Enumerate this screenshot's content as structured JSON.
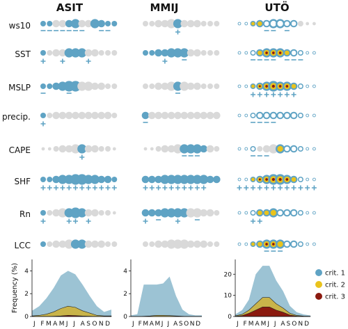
{
  "colors": {
    "crit1": "#5fa3c4",
    "crit2": "#eac31c",
    "crit3": "#8b1a0f",
    "gray": "#d9d9d9",
    "area1": "#9cc3d4",
    "area2": "#c9b44a",
    "area3": "#8b1a0f"
  },
  "months": [
    "J",
    "F",
    "M",
    "A",
    "M",
    "J",
    "J",
    "A",
    "S",
    "O",
    "N",
    "D"
  ],
  "month_string": "J FMAMJ J ASOND",
  "stations": [
    {
      "name": "ASIT",
      "key": "asit"
    },
    {
      "name": "MMIJ",
      "key": "mmij"
    },
    {
      "name": "UTÖ",
      "key": "uto"
    }
  ],
  "variables": [
    "ws10",
    "SST",
    "MSLP",
    "precip.",
    "CAPE",
    "SHF",
    "Rn",
    "LCC"
  ],
  "bubbles": {
    "asit": {
      "ws10": {
        "size": [
          2,
          2,
          3,
          3,
          3,
          4,
          3,
          3,
          4,
          3,
          2,
          2
        ],
        "c": [
          1,
          1,
          0,
          0,
          1,
          1,
          0,
          0,
          1,
          1,
          1,
          1
        ],
        "sig": "-------  -- "
      },
      "SST": {
        "size": [
          2,
          2,
          3,
          3,
          4,
          4,
          4,
          3,
          3,
          2,
          2,
          2
        ],
        "c": [
          1,
          0,
          0,
          0,
          1,
          1,
          1,
          0,
          0,
          0,
          0,
          0
        ],
        "sig": "+  +   +    "
      },
      "MSLP": {
        "size": [
          2,
          2,
          3,
          4,
          5,
          5,
          4,
          4,
          3,
          3,
          2,
          2
        ],
        "c": [
          1,
          1,
          1,
          1,
          1,
          1,
          0,
          0,
          0,
          0,
          0,
          0
        ],
        "sig": "-   -       "
      },
      "precip.": {
        "size": [
          2,
          2,
          3,
          3,
          3,
          3,
          3,
          3,
          3,
          3,
          3,
          2
        ],
        "c": [
          1,
          0,
          0,
          0,
          0,
          0,
          0,
          0,
          0,
          0,
          0,
          0
        ],
        "sig": "+           "
      },
      "CAPE": {
        "size": [
          1,
          1,
          2,
          3,
          3,
          4,
          4,
          3,
          3,
          2,
          2,
          1
        ],
        "c": [
          0,
          0,
          0,
          0,
          0,
          0,
          1,
          0,
          0,
          0,
          0,
          0
        ],
        "sig": "      +     "
      },
      "SHF": {
        "size": [
          2,
          2,
          3,
          4,
          4,
          5,
          5,
          4,
          4,
          3,
          3,
          2
        ],
        "c": [
          1,
          1,
          1,
          1,
          1,
          1,
          1,
          1,
          1,
          1,
          1,
          1
        ],
        "sig": "++++++++++++"
      },
      "Rn": {
        "size": [
          2,
          2,
          3,
          4,
          4,
          5,
          4,
          3,
          3,
          2,
          2,
          1
        ],
        "c": [
          1,
          0,
          0,
          0,
          1,
          1,
          1,
          0,
          0,
          0,
          0,
          0
        ],
        "sig": "+   ++ +    "
      },
      "LCC": {
        "size": [
          2,
          2,
          3,
          3,
          4,
          4,
          4,
          3,
          3,
          3,
          2,
          2
        ],
        "c": [
          1,
          0,
          0,
          0,
          0,
          1,
          1,
          0,
          0,
          0,
          0,
          0
        ],
        "sig": "            "
      }
    },
    "mmij": {
      "ws10": {
        "size": [
          2,
          2,
          3,
          3,
          4,
          4,
          3,
          3,
          3,
          2,
          2,
          2
        ],
        "c": [
          0,
          0,
          0,
          0,
          0,
          1,
          0,
          0,
          0,
          0,
          0,
          0
        ],
        "sig": "     +      "
      },
      "SST": {
        "size": [
          2,
          2,
          3,
          3,
          4,
          4,
          4,
          3,
          3,
          2,
          2,
          2
        ],
        "c": [
          1,
          1,
          1,
          1,
          1,
          1,
          1,
          0,
          0,
          0,
          0,
          0
        ],
        "sig": "   +  -     "
      },
      "MSLP": {
        "size": [
          2,
          2,
          3,
          3,
          4,
          4,
          4,
          3,
          3,
          2,
          2,
          2
        ],
        "c": [
          0,
          0,
          0,
          0,
          0,
          1,
          0,
          0,
          0,
          0,
          0,
          0
        ],
        "sig": "     -      "
      },
      "precip.": {
        "size": [
          3,
          3,
          3,
          3,
          3,
          3,
          3,
          3,
          3,
          3,
          3,
          3
        ],
        "c": [
          1,
          0,
          0,
          0,
          0,
          0,
          0,
          0,
          0,
          0,
          0,
          0
        ],
        "sig": "-           "
      },
      "CAPE": {
        "size": [
          1,
          1,
          2,
          3,
          3,
          4,
          4,
          4,
          4,
          3,
          3,
          2
        ],
        "c": [
          0,
          0,
          0,
          0,
          0,
          0,
          1,
          1,
          1,
          1,
          0,
          0
        ],
        "sig": "      ---   "
      },
      "SHF": {
        "size": [
          3,
          3,
          3,
          4,
          4,
          4,
          4,
          4,
          4,
          4,
          3,
          3
        ],
        "c": [
          1,
          1,
          1,
          1,
          1,
          1,
          1,
          1,
          1,
          1,
          1,
          1
        ],
        "sig": "++++++++++  "
      },
      "Rn": {
        "size": [
          3,
          3,
          3,
          4,
          4,
          4,
          4,
          4,
          4,
          3,
          3,
          2
        ],
        "c": [
          1,
          1,
          1,
          1,
          1,
          1,
          1,
          0,
          0,
          0,
          0,
          0
        ],
        "sig": "+ -  +  -   "
      },
      "LCC": {
        "size": [
          2,
          2,
          3,
          3,
          4,
          4,
          4,
          3,
          3,
          3,
          2,
          2
        ],
        "c": [
          0,
          0,
          0,
          0,
          0,
          0,
          0,
          0,
          0,
          0,
          0,
          0
        ],
        "sig": "            "
      }
    },
    "uto": {
      "ws10": {
        "size": [
          1,
          1,
          2,
          3,
          3,
          4,
          4,
          3,
          3,
          2,
          1,
          1
        ],
        "c": [
          1,
          1,
          2,
          2,
          1,
          1,
          1,
          1,
          1,
          0,
          0,
          0
        ],
        "sig": "    -- -    "
      },
      "SST": {
        "size": [
          1,
          1,
          2,
          3,
          4,
          4,
          4,
          3,
          3,
          2,
          1,
          1
        ],
        "c": [
          1,
          1,
          1,
          2,
          3,
          3,
          3,
          2,
          1,
          1,
          1,
          1
        ],
        "sig": "  ---- ---  "
      },
      "MSLP": {
        "size": [
          1,
          1,
          2,
          3,
          4,
          5,
          4,
          4,
          3,
          2,
          1,
          1
        ],
        "c": [
          1,
          1,
          2,
          3,
          3,
          3,
          3,
          3,
          2,
          1,
          1,
          1
        ],
        "sig": "  +++++++   "
      },
      "precip.": {
        "size": [
          1,
          1,
          2,
          3,
          3,
          3,
          3,
          3,
          3,
          2,
          1,
          1
        ],
        "c": [
          1,
          1,
          1,
          1,
          1,
          1,
          1,
          1,
          1,
          1,
          1,
          1
        ],
        "sig": "  ----      "
      },
      "CAPE": {
        "size": [
          1,
          1,
          2,
          2,
          3,
          4,
          4,
          3,
          3,
          2,
          1,
          1
        ],
        "c": [
          1,
          1,
          1,
          0,
          0,
          0,
          2,
          1,
          1,
          1,
          1,
          1
        ],
        "sig": "  ---      "
      },
      "SHF": {
        "size": [
          1,
          1,
          2,
          3,
          4,
          5,
          5,
          4,
          3,
          2,
          1,
          1
        ],
        "c": [
          1,
          1,
          2,
          3,
          3,
          3,
          3,
          3,
          2,
          1,
          1,
          1
        ],
        "sig": "++++++++++++"
      },
      "Rn": {
        "size": [
          1,
          1,
          2,
          3,
          3,
          4,
          3,
          3,
          3,
          2,
          1,
          1
        ],
        "c": [
          1,
          1,
          1,
          2,
          2,
          2,
          1,
          1,
          1,
          1,
          1,
          1
        ],
        "sig": "  ++        "
      },
      "LCC": {
        "size": [
          1,
          1,
          2,
          3,
          4,
          4,
          4,
          3,
          3,
          2,
          1,
          1
        ],
        "c": [
          1,
          1,
          2,
          2,
          3,
          3,
          2,
          1,
          1,
          1,
          1,
          1
        ],
        "sig": "    ---     "
      }
    }
  },
  "chart_data": [
    {
      "type": "area",
      "station": "ASIT",
      "ylabel": "Frequency (%)",
      "ylim": [
        0,
        5
      ],
      "yticks": [
        0,
        2,
        4
      ],
      "x": [
        "J",
        "F",
        "M",
        "A",
        "M",
        "J",
        "J",
        "A",
        "S",
        "O",
        "N",
        "D"
      ],
      "series": [
        {
          "name": "crit. 1",
          "values": [
            0.5,
            0.9,
            1.6,
            2.5,
            3.6,
            4.0,
            3.7,
            2.8,
            1.8,
            0.9,
            0.4,
            0.6
          ]
        },
        {
          "name": "crit. 2",
          "values": [
            0.05,
            0.1,
            0.2,
            0.4,
            0.7,
            0.9,
            0.8,
            0.5,
            0.3,
            0.1,
            0.05,
            0.05
          ]
        },
        {
          "name": "crit. 3",
          "values": [
            0,
            0,
            0,
            0.02,
            0.05,
            0.1,
            0.08,
            0.04,
            0.02,
            0,
            0,
            0
          ]
        }
      ]
    },
    {
      "type": "area",
      "station": "MMIJ",
      "ylabel": "",
      "ylim": [
        0,
        5
      ],
      "yticks": [
        0,
        2,
        4
      ],
      "x": [
        "J",
        "F",
        "M",
        "A",
        "M",
        "J",
        "J",
        "A",
        "S",
        "O",
        "N",
        "D"
      ],
      "series": [
        {
          "name": "crit. 1",
          "values": [
            0.1,
            0.2,
            2.8,
            2.8,
            2.8,
            2.9,
            3.5,
            1.8,
            0.6,
            0.2,
            0.1,
            0.1
          ]
        },
        {
          "name": "crit. 2",
          "values": [
            0,
            0,
            0.02,
            0.05,
            0.1,
            0.1,
            0.08,
            0.05,
            0.02,
            0,
            0,
            0
          ]
        },
        {
          "name": "crit. 3",
          "values": [
            0,
            0,
            0,
            0,
            0,
            0,
            0,
            0,
            0,
            0,
            0,
            0
          ]
        }
      ]
    },
    {
      "type": "area",
      "station": "UTÖ",
      "ylabel": "",
      "ylim": [
        0,
        27
      ],
      "yticks": [
        0,
        10,
        20
      ],
      "x": [
        "J",
        "F",
        "M",
        "A",
        "M",
        "J",
        "J",
        "A",
        "S",
        "O",
        "N",
        "D"
      ],
      "series": [
        {
          "name": "crit. 1",
          "values": [
            1.0,
            3.0,
            8.0,
            20.0,
            24.0,
            24.0,
            17.0,
            12.0,
            5.0,
            2.0,
            1.0,
            0.5
          ]
        },
        {
          "name": "crit. 2",
          "values": [
            0.3,
            1.0,
            3.0,
            6.0,
            9.0,
            9.0,
            6.0,
            4.0,
            1.5,
            0.5,
            0.2,
            0.1
          ]
        },
        {
          "name": "crit. 3",
          "values": [
            0.1,
            0.4,
            1.5,
            3.0,
            4.5,
            4.5,
            3.0,
            2.0,
            0.7,
            0.2,
            0.05,
            0
          ]
        }
      ]
    }
  ],
  "legend": [
    {
      "label": "crit. 1",
      "color": "#5fa3c4"
    },
    {
      "label": "crit. 2",
      "color": "#eac31c"
    },
    {
      "label": "crit. 3",
      "color": "#8b1a0f"
    }
  ]
}
